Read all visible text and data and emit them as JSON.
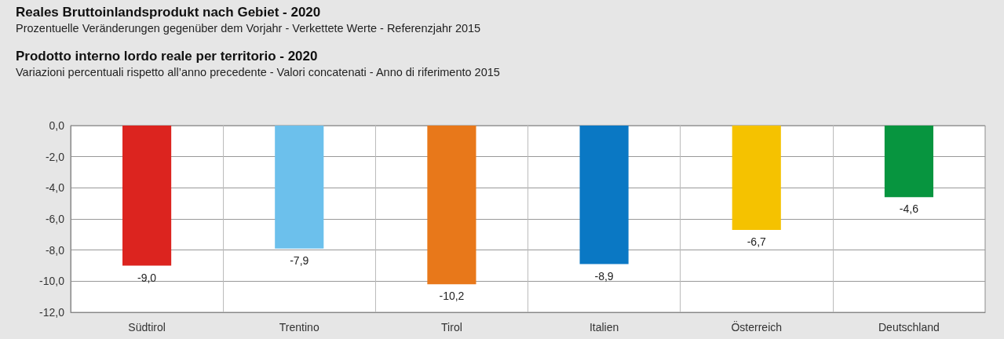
{
  "chart_data": {
    "type": "bar",
    "title": "Reales Bruttoinlandsprodukt nach Gebiet - 2020",
    "subtitle": "Prozentuelle Veränderungen gegenüber dem Vorjahr - Verkettete Werte - Referenzjahr 2015",
    "annotations": [
      "Prodotto interno lordo reale per territorio - 2020",
      "Variazioni percentuali rispetto all’anno precedente - Valori concatenati - Anno di riferimento 2015"
    ],
    "categories": [
      "Südtirol",
      "Trentino",
      "Tirol",
      "Italien",
      "Österreich",
      "Deutschland"
    ],
    "values": [
      -9.0,
      -7.9,
      -10.2,
      -8.9,
      -6.7,
      -4.6
    ],
    "value_labels": [
      "-9,0",
      "-7,9",
      "-10,2",
      "-8,9",
      "-6,7",
      "-4,6"
    ],
    "colors": [
      "#dc241f",
      "#6cc0ec",
      "#e8781a",
      "#0a78c4",
      "#f5c200",
      "#07953f"
    ],
    "ylim": [
      -12,
      0
    ],
    "yticks": [
      {
        "value": 0,
        "label": "0,0"
      },
      {
        "value": -2,
        "label": "-2,0"
      },
      {
        "value": -4,
        "label": "-4,0"
      },
      {
        "value": -6,
        "label": "-6,0"
      },
      {
        "value": -8,
        "label": "-8,0"
      },
      {
        "value": -10,
        "label": "-10,0"
      },
      {
        "value": -12,
        "label": "-12,0"
      }
    ],
    "grid": true
  }
}
